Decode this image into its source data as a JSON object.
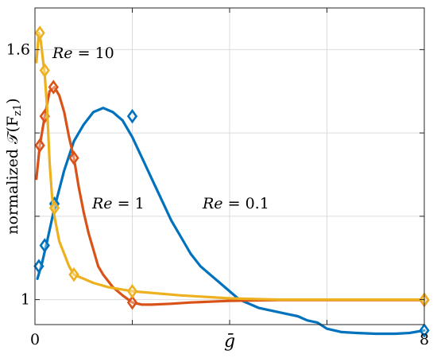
{
  "chart_data": {
    "type": "line",
    "xlabel": "ḡ",
    "ylabel": "normalized 𝒯(F",
    "ylabel_sub": "z1",
    "ylabel_close": ")",
    "xlim": [
      0,
      8
    ],
    "ylim": [
      0.94,
      1.7
    ],
    "xticks": [
      0,
      2,
      4,
      6,
      8
    ],
    "xtick_labels": [
      "0",
      "",
      "",
      "",
      "8"
    ],
    "yticks": [
      1.0,
      1.2,
      1.4,
      1.6
    ],
    "ytick_labels": [
      "1",
      "",
      "",
      "1.6"
    ],
    "grid": true,
    "series": [
      {
        "name": "Re = 0.1",
        "label_var": "Re",
        "label_value": "= 0.1",
        "color": "#0072BD",
        "x": [
          0.05,
          0.15,
          0.25,
          0.4,
          0.6,
          0.8,
          1.0,
          1.2,
          1.4,
          1.6,
          1.8,
          2.0,
          2.2,
          2.4,
          2.6,
          2.8,
          3.0,
          3.2,
          3.4,
          3.6,
          3.8,
          4.0,
          4.2,
          4.4,
          4.6,
          4.8,
          5.0,
          5.2,
          5.4,
          5.6,
          5.8,
          6.0,
          6.3,
          6.6,
          7.0,
          7.4,
          7.7,
          8.0
        ],
        "y": [
          1.05,
          1.09,
          1.14,
          1.22,
          1.31,
          1.38,
          1.42,
          1.45,
          1.46,
          1.45,
          1.43,
          1.39,
          1.34,
          1.29,
          1.24,
          1.19,
          1.15,
          1.11,
          1.08,
          1.06,
          1.04,
          1.02,
          1.0,
          0.99,
          0.98,
          0.975,
          0.97,
          0.965,
          0.96,
          0.95,
          0.945,
          0.93,
          0.922,
          0.92,
          0.918,
          0.918,
          0.92,
          0.926
        ],
        "markers_x": [
          0.08,
          0.2,
          0.4,
          2.0,
          8.0
        ],
        "markers_y": [
          1.08,
          1.13,
          1.23,
          1.44,
          0.926
        ]
      },
      {
        "name": "Re = 1",
        "label_var": "Re",
        "label_value": "= 1",
        "color": "#D95319",
        "x": [
          0.03,
          0.1,
          0.2,
          0.3,
          0.4,
          0.5,
          0.6,
          0.7,
          0.8,
          0.9,
          1.0,
          1.1,
          1.2,
          1.3,
          1.4,
          1.6,
          1.8,
          2.0,
          2.2,
          2.4,
          2.8,
          3.2,
          3.6,
          4.0,
          4.5,
          5.0,
          6.0,
          7.0,
          8.0
        ],
        "y": [
          1.29,
          1.37,
          1.44,
          1.5,
          1.51,
          1.49,
          1.45,
          1.39,
          1.34,
          1.27,
          1.21,
          1.16,
          1.12,
          1.08,
          1.06,
          1.03,
          1.01,
          0.993,
          0.988,
          0.988,
          0.99,
          0.993,
          0.995,
          0.997,
          0.998,
          0.999,
          0.999,
          0.999,
          0.999
        ],
        "markers_x": [
          0.1,
          0.2,
          0.38,
          0.8,
          2.0,
          8.0
        ],
        "markers_y": [
          1.37,
          1.44,
          1.51,
          1.34,
          0.993,
          0.999
        ]
      },
      {
        "name": "Re = 10",
        "label_var": "Re",
        "label_value": "= 10",
        "color": "#EDB120",
        "x": [
          0.03,
          0.08,
          0.12,
          0.16,
          0.2,
          0.25,
          0.3,
          0.35,
          0.4,
          0.5,
          0.6,
          0.7,
          0.8,
          1.0,
          1.2,
          1.5,
          2.0,
          3.0,
          4.0,
          5.0,
          6.0,
          7.0,
          8.0
        ],
        "y": [
          1.57,
          1.64,
          1.62,
          1.58,
          1.54,
          1.46,
          1.33,
          1.25,
          1.2,
          1.14,
          1.11,
          1.08,
          1.06,
          1.05,
          1.04,
          1.03,
          1.02,
          1.01,
          1.003,
          1.0,
          1.0,
          1.0,
          1.0
        ],
        "markers_x": [
          0.1,
          0.2,
          0.4,
          0.8,
          2.0,
          8.0
        ],
        "markers_y": [
          1.64,
          1.55,
          1.22,
          1.06,
          1.02,
          1.0
        ]
      }
    ]
  }
}
